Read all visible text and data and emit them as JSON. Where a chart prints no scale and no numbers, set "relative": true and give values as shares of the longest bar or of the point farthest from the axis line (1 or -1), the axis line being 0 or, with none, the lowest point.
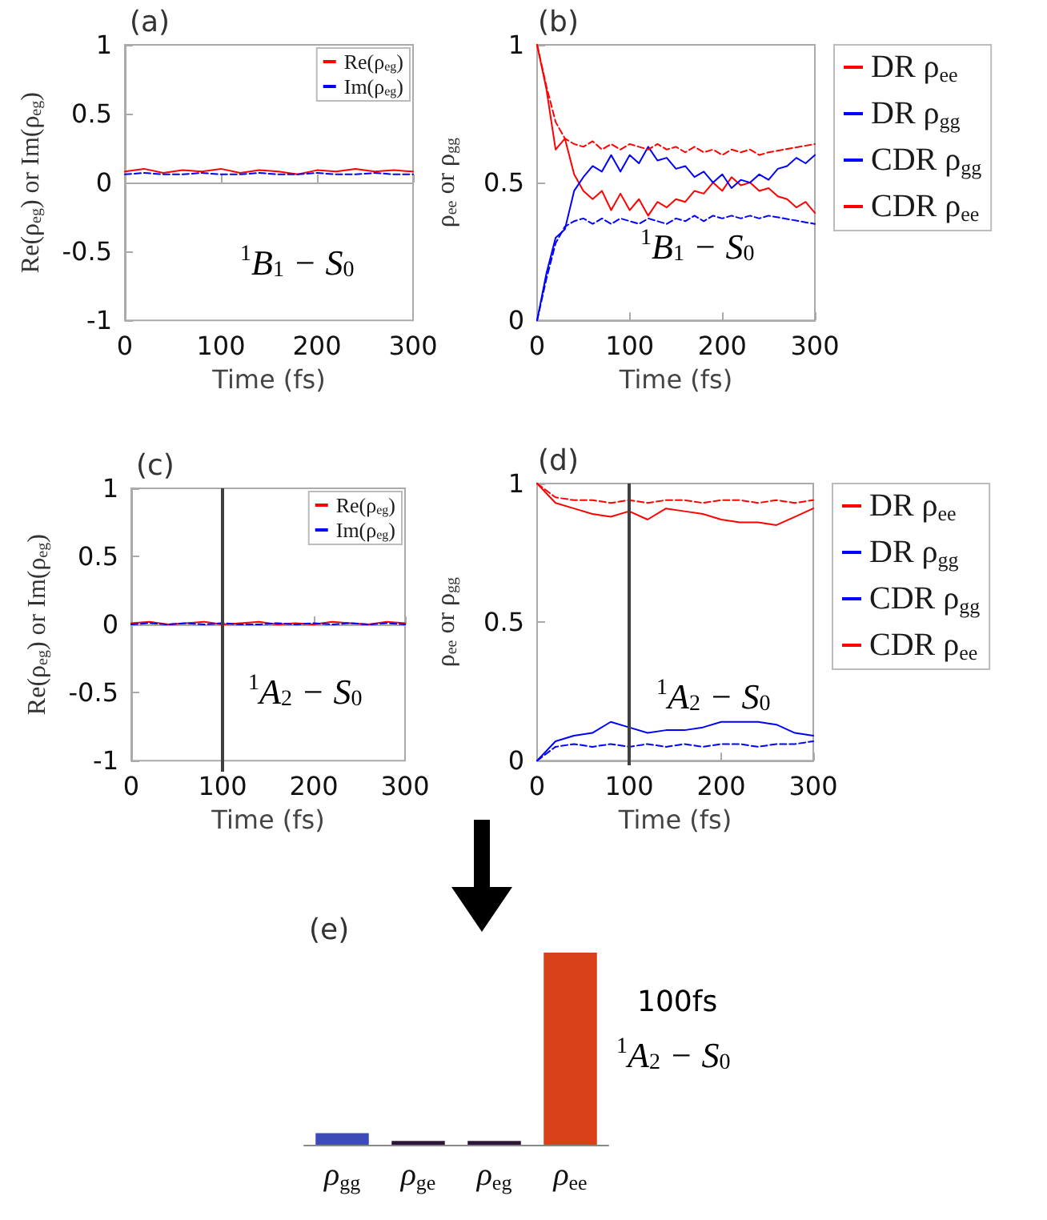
{
  "chart_data": [
    {
      "type": "line",
      "title": "(a)",
      "xlabel": "Time (fs)",
      "ylabel": "Re(ρ$_{eg}$) or Im(ρ$_{eg}$)",
      "x": [
        0,
        20,
        40,
        60,
        80,
        100,
        120,
        140,
        160,
        180,
        200,
        220,
        240,
        260,
        280,
        300
      ],
      "xlim": [
        0,
        300
      ],
      "xticks": [
        0,
        100,
        200,
        300
      ],
      "ylim": [
        -1,
        1
      ],
      "yticks": [
        -1,
        -0.5,
        0,
        0.5,
        1
      ],
      "legend": "top right",
      "marker": "none",
      "annotations": [
        "$^{1}$B$_{1}$ − S$_{0}$"
      ],
      "series": [
        {
          "name": "Re(ρ$_{eg}$)",
          "color": "#ff0000",
          "values": [
            0.08,
            0.1,
            0.07,
            0.09,
            0.08,
            0.1,
            0.07,
            0.09,
            0.08,
            0.06,
            0.09,
            0.08,
            0.1,
            0.08,
            0.09,
            0.08
          ]
        },
        {
          "name": "Im(ρ$_{eg}$)",
          "color": "#0000ff",
          "line_style": "dashed",
          "values": [
            0.06,
            0.07,
            0.06,
            0.06,
            0.07,
            0.06,
            0.06,
            0.07,
            0.06,
            0.06,
            0.07,
            0.06,
            0.06,
            0.07,
            0.06,
            0.06
          ]
        }
      ]
    },
    {
      "type": "line",
      "title": "(b)",
      "xlabel": "Time (fs)",
      "ylabel": "ρ$_{ee}$ or ρ$_{gg}$",
      "x": [
        0,
        10,
        20,
        30,
        40,
        50,
        60,
        70,
        80,
        90,
        100,
        110,
        120,
        130,
        140,
        150,
        160,
        170,
        180,
        190,
        200,
        210,
        220,
        230,
        240,
        250,
        260,
        270,
        280,
        290,
        300
      ],
      "xlim": [
        0,
        300
      ],
      "xticks": [
        0,
        100,
        200,
        300
      ],
      "ylim": [
        0,
        1
      ],
      "yticks": [
        0,
        0.5,
        1
      ],
      "legend": "right",
      "marker": "none",
      "annotations": [
        "$^{1}$B$_{1}$ − S$_{0}$"
      ],
      "series": [
        {
          "name": "DR ρ$_{ee}$",
          "color": "#ff0000",
          "values": [
            1.0,
            0.84,
            0.62,
            0.66,
            0.53,
            0.47,
            0.44,
            0.47,
            0.4,
            0.46,
            0.4,
            0.44,
            0.38,
            0.43,
            0.41,
            0.44,
            0.43,
            0.47,
            0.46,
            0.5,
            0.47,
            0.52,
            0.49,
            0.5,
            0.47,
            0.48,
            0.45,
            0.44,
            0.41,
            0.43,
            0.39
          ]
        },
        {
          "name": "DR ρ$_{gg}$",
          "color": "#0000ff",
          "values": [
            0,
            0.17,
            0.3,
            0.33,
            0.47,
            0.52,
            0.56,
            0.54,
            0.6,
            0.54,
            0.6,
            0.57,
            0.63,
            0.58,
            0.59,
            0.55,
            0.56,
            0.52,
            0.54,
            0.5,
            0.53,
            0.48,
            0.51,
            0.5,
            0.53,
            0.51,
            0.55,
            0.56,
            0.59,
            0.57,
            0.6
          ]
        },
        {
          "name": "CDR ρ$_{gg}$",
          "color": "#0000ff",
          "line_style": "dashed",
          "x": [
            0,
            10,
            20,
            30,
            40,
            50,
            60,
            70,
            80,
            90,
            100,
            110,
            120,
            130,
            140,
            150,
            160,
            170,
            180,
            190,
            200,
            210,
            220,
            230,
            240,
            250,
            300
          ],
          "values": [
            0,
            0.15,
            0.28,
            0.34,
            0.36,
            0.37,
            0.35,
            0.37,
            0.35,
            0.37,
            0.36,
            0.35,
            0.37,
            0.36,
            0.35,
            0.37,
            0.36,
            0.38,
            0.36,
            0.38,
            0.37,
            0.38,
            0.37,
            0.38,
            0.37,
            0.38,
            0.35
          ]
        },
        {
          "name": "CDR ρ$_{ee}$",
          "color": "#ff0000",
          "line_style": "dashed",
          "x": [
            0,
            10,
            20,
            30,
            40,
            50,
            60,
            70,
            80,
            90,
            100,
            110,
            120,
            130,
            140,
            150,
            160,
            170,
            180,
            190,
            200,
            210,
            220,
            230,
            240,
            250,
            300
          ],
          "values": [
            1.0,
            0.85,
            0.72,
            0.66,
            0.64,
            0.63,
            0.65,
            0.62,
            0.64,
            0.62,
            0.64,
            0.63,
            0.62,
            0.64,
            0.62,
            0.63,
            0.61,
            0.63,
            0.61,
            0.62,
            0.6,
            0.62,
            0.61,
            0.62,
            0.6,
            0.61,
            0.64
          ]
        }
      ]
    },
    {
      "type": "line",
      "title": "(c)",
      "xlabel": "Time (fs)",
      "ylabel": "Re(ρ$_{eg}$) or Im(ρ$_{eg}$)",
      "x": [
        0,
        20,
        40,
        60,
        80,
        100,
        120,
        140,
        160,
        180,
        200,
        220,
        240,
        260,
        280,
        300
      ],
      "xlim": [
        0,
        300
      ],
      "xticks": [
        0,
        100,
        200,
        300
      ],
      "ylim": [
        -1,
        1
      ],
      "yticks": [
        -1,
        -0.5,
        0,
        0.5,
        1
      ],
      "legend": "top right",
      "marker": "none",
      "annotations": [
        "$^{1}$A$_{2}$ − S$_{0}$"
      ],
      "ref_lines": [
        {
          "axis": "x",
          "value": 100,
          "color": "#404040"
        }
      ],
      "series": [
        {
          "name": "Re(ρ$_{eg}$)",
          "color": "#ff0000",
          "values": [
            0.01,
            0.02,
            0,
            0.01,
            0.02,
            0,
            0.01,
            0.02,
            0,
            0.01,
            0,
            0.02,
            0.01,
            0,
            0.02,
            0.01
          ]
        },
        {
          "name": "Im(ρ$_{eg}$)",
          "color": "#0000ff",
          "line_style": "dashed",
          "values": [
            0,
            0.01,
            0,
            0.01,
            0,
            0.01,
            0,
            0,
            0.01,
            0,
            0.01,
            0,
            0.01,
            0,
            0.01,
            0
          ]
        }
      ]
    },
    {
      "type": "line",
      "title": "(d)",
      "xlabel": "Time (fs)",
      "ylabel": "ρ$_{ee}$ or ρ$_{gg}$",
      "x": [
        0,
        20,
        40,
        60,
        80,
        100,
        120,
        140,
        160,
        180,
        200,
        220,
        240,
        260,
        280,
        300
      ],
      "xlim": [
        0,
        300
      ],
      "xticks": [
        0,
        100,
        200,
        300
      ],
      "ylim": [
        0,
        1
      ],
      "yticks": [
        0,
        0.5,
        1
      ],
      "legend": "right",
      "marker": "none",
      "annotations": [
        "$^{1}$A$_{2}$ − S$_{0}$"
      ],
      "ref_lines": [
        {
          "axis": "x",
          "value": 100,
          "color": "#404040"
        }
      ],
      "series": [
        {
          "name": "DR ρ$_{ee}$",
          "color": "#ff0000",
          "values": [
            1.0,
            0.93,
            0.91,
            0.89,
            0.88,
            0.9,
            0.87,
            0.91,
            0.9,
            0.89,
            0.87,
            0.86,
            0.86,
            0.85,
            0.88,
            0.91
          ]
        },
        {
          "name": "DR ρ$_{gg}$",
          "color": "#0000ff",
          "values": [
            0,
            0.07,
            0.09,
            0.1,
            0.14,
            0.12,
            0.1,
            0.11,
            0.11,
            0.12,
            0.14,
            0.14,
            0.14,
            0.13,
            0.1,
            0.09
          ]
        },
        {
          "name": "CDR ρ$_{gg}$",
          "color": "#0000ff",
          "line_style": "dashed",
          "values": [
            0,
            0.05,
            0.06,
            0.05,
            0.06,
            0.05,
            0.06,
            0.05,
            0.06,
            0.05,
            0.06,
            0.06,
            0.05,
            0.06,
            0.06,
            0.07
          ]
        },
        {
          "name": "CDR ρ$_{ee}$",
          "color": "#ff0000",
          "line_style": "dashed",
          "values": [
            1.0,
            0.95,
            0.94,
            0.94,
            0.93,
            0.94,
            0.93,
            0.94,
            0.94,
            0.93,
            0.94,
            0.94,
            0.93,
            0.94,
            0.93,
            0.94
          ]
        }
      ]
    },
    {
      "type": "bar",
      "title": "(e)",
      "relative": true,
      "categories": [
        "ρ$_{gg}$",
        "ρ$_{ge}$",
        "ρ$_{eg}$",
        "ρ$_{ee}$"
      ],
      "values": [
        0.06,
        0.02,
        0.02,
        1
      ],
      "colors": [
        "#3c4bb5",
        "#2e1438",
        "#2e1438",
        "#d8401a"
      ],
      "annotations": [
        "100fs",
        "$^{1}$A$_{2}$ − S$_{0}$"
      ]
    }
  ]
}
